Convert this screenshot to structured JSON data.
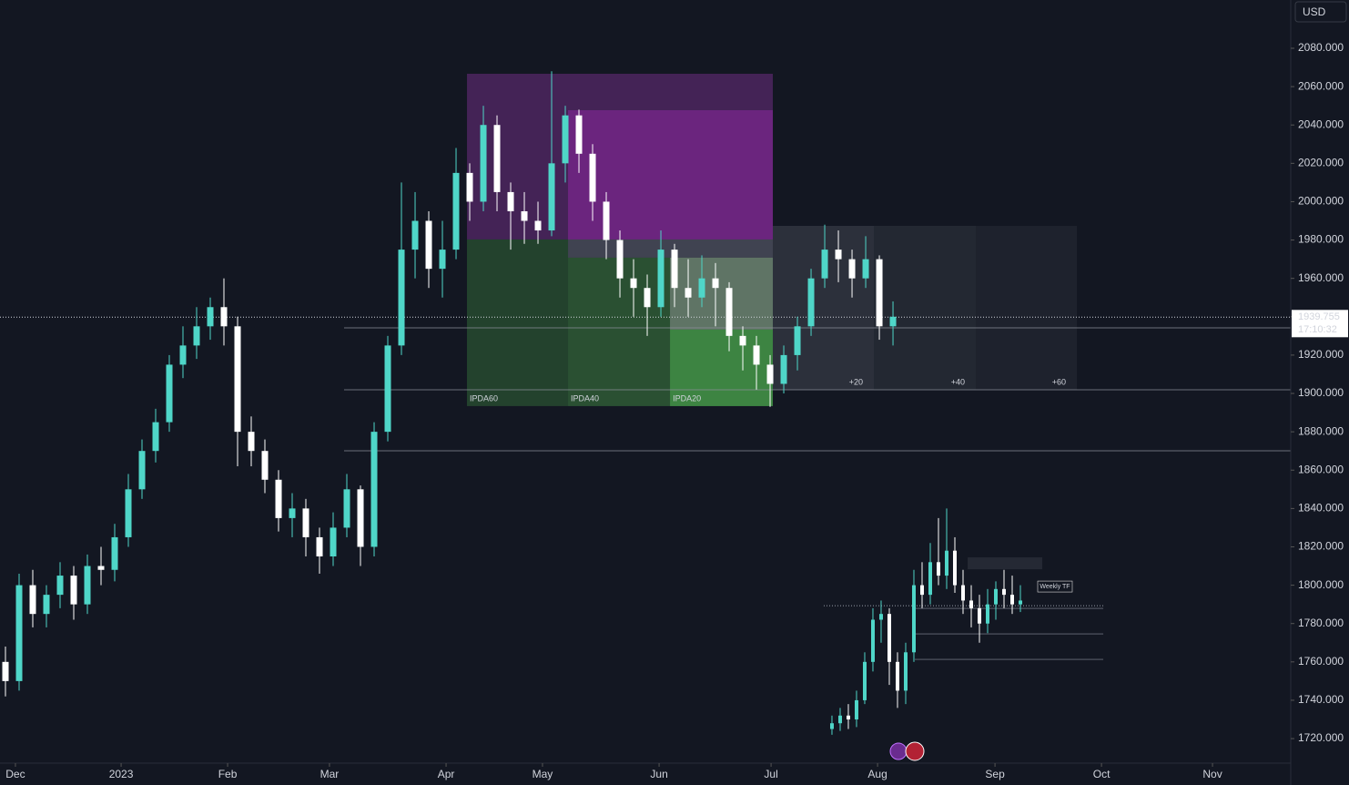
{
  "chart_data": {
    "type": "candlestick",
    "currency": "USD",
    "countdown": "17:10:32",
    "up_color": "#4fd6c8",
    "down_color": "#ffffff",
    "x": [
      0,
      1,
      2,
      3,
      4,
      5,
      6,
      7,
      8,
      9,
      10,
      11,
      12,
      13,
      14,
      15,
      16,
      17,
      18,
      19,
      20,
      21,
      22,
      23,
      24,
      25,
      26,
      27,
      28,
      29,
      30,
      31,
      32,
      33,
      34,
      35,
      36,
      37,
      38,
      39,
      40,
      41,
      42,
      43,
      44,
      45,
      46,
      47,
      48,
      49,
      50,
      51,
      52,
      53,
      54,
      55,
      56,
      57,
      58,
      59,
      60,
      61,
      62,
      63,
      64,
      65
    ],
    "open": [
      1760,
      1750,
      1800,
      1785,
      1795,
      1805,
      1790,
      1810,
      1808,
      1825,
      1850,
      1870,
      1885,
      1915,
      1925,
      1935,
      1945,
      1935,
      1880,
      1870,
      1855,
      1835,
      1840,
      1825,
      1815,
      1830,
      1850,
      1820,
      1880,
      1925,
      1975,
      1990,
      1965,
      1975,
      2015,
      2000,
      2040,
      2005,
      1995,
      1990,
      1985,
      2020,
      2045,
      2025,
      2000,
      1980,
      1960,
      1955,
      1945,
      1975,
      1955,
      1950,
      1960,
      1955,
      1930,
      1925,
      1915,
      1905,
      1920,
      1935,
      1960,
      1975,
      1970,
      1960,
      1970,
      1935
    ],
    "high": [
      1768,
      1806,
      1808,
      1800,
      1812,
      1810,
      1816,
      1820,
      1832,
      1858,
      1876,
      1892,
      1920,
      1935,
      1945,
      1950,
      1960,
      1940,
      1888,
      1876,
      1860,
      1848,
      1845,
      1830,
      1838,
      1858,
      1852,
      1885,
      1930,
      2010,
      2005,
      1995,
      1990,
      2028,
      2020,
      2050,
      2045,
      2010,
      2005,
      2000,
      2068,
      2050,
      2048,
      2030,
      2005,
      1985,
      1970,
      1962,
      1985,
      1978,
      1970,
      1972,
      1968,
      1958,
      1935,
      1930,
      1920,
      1925,
      1940,
      1965,
      1988,
      1985,
      1975,
      1982,
      1972,
      1948
    ],
    "low": [
      1742,
      1745,
      1778,
      1778,
      1788,
      1782,
      1785,
      1800,
      1802,
      1820,
      1845,
      1864,
      1880,
      1908,
      1918,
      1928,
      1925,
      1862,
      1862,
      1848,
      1828,
      1825,
      1815,
      1806,
      1810,
      1825,
      1810,
      1815,
      1875,
      1920,
      1960,
      1955,
      1950,
      1970,
      1990,
      1995,
      1995,
      1975,
      1978,
      1978,
      1982,
      2010,
      2015,
      1990,
      1970,
      1950,
      1940,
      1930,
      1940,
      1945,
      1940,
      1945,
      1935,
      1922,
      1912,
      1902,
      1893,
      1900,
      1912,
      1930,
      1955,
      1958,
      1950,
      1955,
      1928,
      1925
    ],
    "close": [
      1750,
      1800,
      1785,
      1795,
      1805,
      1790,
      1810,
      1808,
      1825,
      1850,
      1870,
      1885,
      1915,
      1925,
      1935,
      1945,
      1935,
      1880,
      1870,
      1855,
      1835,
      1840,
      1825,
      1815,
      1830,
      1850,
      1820,
      1880,
      1925,
      1975,
      1990,
      1965,
      1975,
      2015,
      2000,
      2040,
      2005,
      1995,
      1990,
      1985,
      2020,
      2045,
      2025,
      2000,
      1980,
      1960,
      1955,
      1945,
      1975,
      1955,
      1950,
      1960,
      1955,
      1930,
      1925,
      1915,
      1905,
      1920,
      1935,
      1960,
      1975,
      1970,
      1960,
      1970,
      1935,
      1940
    ],
    "last_price": 1939.755,
    "xlim": [
      -0.4,
      94.13
    ],
    "xticks": [
      {
        "value": 0.73,
        "label": "Dec"
      },
      {
        "value": 8.47,
        "label": "2023"
      },
      {
        "value": 16.27,
        "label": "Feb"
      },
      {
        "value": 23.73,
        "label": "Mar"
      },
      {
        "value": 32.27,
        "label": "Apr"
      },
      {
        "value": 39.33,
        "label": "May"
      },
      {
        "value": 47.87,
        "label": "Jun"
      },
      {
        "value": 56.07,
        "label": "Jul"
      },
      {
        "value": 63.87,
        "label": "Aug"
      },
      {
        "value": 72.47,
        "label": "Sep"
      },
      {
        "value": 80.27,
        "label": "Oct"
      },
      {
        "value": 88.4,
        "label": "Nov"
      }
    ],
    "ylim": [
      1707.2,
      2105.17
    ],
    "yticks": [
      {
        "value": 1720,
        "label": "1720.000"
      },
      {
        "value": 1740,
        "label": "1740.000"
      },
      {
        "value": 1760,
        "label": "1760.000"
      },
      {
        "value": 1780,
        "label": "1780.000"
      },
      {
        "value": 1800,
        "label": "1800.000"
      },
      {
        "value": 1820,
        "label": "1820.000"
      },
      {
        "value": 1840,
        "label": "1840.000"
      },
      {
        "value": 1860,
        "label": "1860.000"
      },
      {
        "value": 1880,
        "label": "1880.000"
      },
      {
        "value": 1900,
        "label": "1900.000"
      },
      {
        "value": 1920,
        "label": "1920.000"
      },
      {
        "value": 1940,
        "label": "1940.000"
      },
      {
        "value": 1960,
        "label": "1960.000"
      },
      {
        "value": 1980,
        "label": "1980.000"
      },
      {
        "value": 2000,
        "label": "2000.000"
      },
      {
        "value": 2020,
        "label": "2020.000"
      },
      {
        "value": 2040,
        "label": "2040.000"
      },
      {
        "value": 2060,
        "label": "2060.000"
      },
      {
        "value": 2080,
        "label": "2080.000"
      }
    ],
    "zones": [
      {
        "x0": 33.8,
        "x1": 56.2,
        "y0": 1980.3,
        "y1": 2066.7,
        "color": "rgba(110,45,130,0.55)"
      },
      {
        "x0": 41.2,
        "x1": 56.2,
        "y0": 1980.3,
        "y1": 2047.7,
        "color": "rgba(140,40,160,0.55)"
      },
      {
        "x0": 33.8,
        "x1": 41.2,
        "y0": 1893.4,
        "y1": 1980.3,
        "color": "rgba(56,120,60,0.45)",
        "label": "IPDA60",
        "label_align": "left"
      },
      {
        "x0": 41.2,
        "x1": 56.2,
        "y0": 1893.4,
        "y1": 1970.8,
        "color": "rgba(70,150,70,0.45)",
        "label": "IPDA40",
        "label_align": "left"
      },
      {
        "x0": 48.67,
        "x1": 56.2,
        "y0": 1893.4,
        "y1": 1933.3,
        "color": "rgba(76,175,80,0.55)",
        "label": "IPDA20",
        "label_align": "left"
      },
      {
        "x0": 41.2,
        "x1": 56.2,
        "y0": 1970.8,
        "y1": 1980.3,
        "color": "rgba(150,150,170,0.35)"
      },
      {
        "x0": 48.67,
        "x1": 56.2,
        "y0": 1933.3,
        "y1": 1970.8,
        "color": "rgba(160,160,165,0.45)"
      },
      {
        "x0": 56.2,
        "x1": 63.6,
        "y0": 1901.9,
        "y1": 1987.4,
        "color": "rgba(160,165,175,0.18)",
        "label": "+20",
        "label_align": "right"
      },
      {
        "x0": 63.6,
        "x1": 71.07,
        "y0": 1901.9,
        "y1": 1987.4,
        "color": "rgba(160,165,175,0.12)",
        "label": "+40",
        "label_align": "right"
      },
      {
        "x0": 71.07,
        "x1": 78.47,
        "y0": 1901.9,
        "y1": 1987.4,
        "color": "rgba(160,165,175,0.08)",
        "label": "+60",
        "label_align": "right"
      }
    ],
    "hlines": [
      {
        "y": 1934.2,
        "x0": 24.8,
        "x1": 94.13
      },
      {
        "y": 1901.9,
        "x0": 24.8,
        "x1": 94.13
      },
      {
        "y": 1870.1,
        "x0": 24.8,
        "x1": 94.13
      }
    ],
    "inset": {
      "label": "Weekly TF",
      "x": [
        60.53,
        61.13,
        61.73,
        62.33,
        62.93,
        63.53,
        64.13,
        64.73,
        65.33,
        65.93,
        66.53,
        67.13,
        67.73,
        68.33,
        68.93,
        69.53,
        70.13,
        70.73,
        71.33,
        71.93,
        72.53,
        73.13,
        73.73,
        74.33
      ],
      "open": [
        1725,
        1728,
        1732,
        1730,
        1740,
        1760,
        1782,
        1785,
        1760,
        1745,
        1765,
        1800,
        1795,
        1812,
        1805,
        1818,
        1800,
        1792,
        1788,
        1780,
        1790,
        1798,
        1795,
        1790
      ],
      "high": [
        1732,
        1736,
        1738,
        1745,
        1765,
        1788,
        1792,
        1788,
        1765,
        1770,
        1808,
        1812,
        1822,
        1835,
        1840,
        1825,
        1808,
        1800,
        1795,
        1798,
        1802,
        1808,
        1805,
        1800
      ],
      "low": [
        1722,
        1724,
        1725,
        1726,
        1738,
        1755,
        1770,
        1748,
        1736,
        1738,
        1760,
        1788,
        1790,
        1800,
        1798,
        1796,
        1785,
        1778,
        1770,
        1775,
        1782,
        1788,
        1785,
        1786
      ],
      "close": [
        1728,
        1732,
        1730,
        1740,
        1760,
        1782,
        1785,
        1760,
        1745,
        1765,
        1800,
        1795,
        1812,
        1805,
        1818,
        1800,
        1792,
        1788,
        1780,
        1790,
        1798,
        1795,
        1790,
        1792
      ],
      "box": {
        "x0": 70.47,
        "x1": 75.93,
        "y0": 1808.3,
        "y1": 1814.5
      },
      "dotted_line": {
        "y": 1789.3,
        "x0": 59.93,
        "x1": 80.4
      },
      "lines": [
        {
          "y": 1787.9,
          "x0": 66.6,
          "x1": 80.4
        },
        {
          "y": 1774.6,
          "x0": 66.6,
          "x1": 80.4
        },
        {
          "y": 1761.3,
          "x0": 66.6,
          "x1": 80.4
        }
      ]
    }
  }
}
